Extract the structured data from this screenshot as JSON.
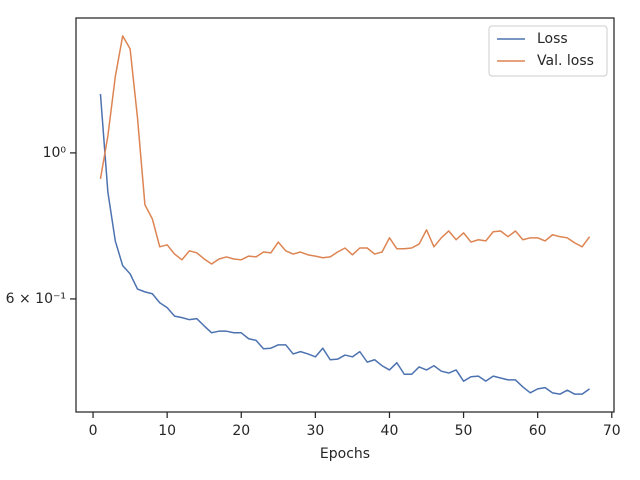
{
  "chart_data": {
    "type": "line",
    "xlabel": "Epochs",
    "yscale": "log",
    "legend": "upper right",
    "grid": false,
    "x": [
      1,
      2,
      3,
      4,
      5,
      6,
      7,
      8,
      9,
      10,
      11,
      12,
      13,
      14,
      15,
      16,
      17,
      18,
      19,
      20,
      21,
      22,
      23,
      24,
      25,
      26,
      27,
      28,
      29,
      30,
      31,
      32,
      33,
      34,
      35,
      36,
      37,
      38,
      39,
      40,
      41,
      42,
      43,
      44,
      45,
      46,
      47,
      48,
      49,
      50,
      51,
      52,
      53,
      54,
      55,
      56,
      57,
      58,
      59,
      60,
      61,
      62,
      63,
      64,
      65,
      66,
      67
    ],
    "series": [
      {
        "name": "Loss",
        "color": "#4c72b0",
        "values": [
          1.229,
          0.872,
          0.735,
          0.674,
          0.655,
          0.621,
          0.615,
          0.611,
          0.592,
          0.582,
          0.565,
          0.562,
          0.558,
          0.56,
          0.546,
          0.533,
          0.536,
          0.536,
          0.533,
          0.533,
          0.522,
          0.519,
          0.504,
          0.505,
          0.511,
          0.511,
          0.495,
          0.499,
          0.495,
          0.49,
          0.505,
          0.485,
          0.486,
          0.493,
          0.49,
          0.499,
          0.481,
          0.485,
          0.475,
          0.468,
          0.48,
          0.461,
          0.461,
          0.473,
          0.468,
          0.475,
          0.466,
          0.463,
          0.468,
          0.45,
          0.457,
          0.458,
          0.45,
          0.458,
          0.455,
          0.452,
          0.452,
          0.441,
          0.432,
          0.438,
          0.44,
          0.432,
          0.43,
          0.436,
          0.43,
          0.43,
          0.438
        ]
      },
      {
        "name": "Val. loss",
        "color": "#dd8452",
        "values": [
          0.913,
          1.061,
          1.305,
          1.506,
          1.439,
          1.13,
          0.834,
          0.794,
          0.72,
          0.725,
          0.702,
          0.688,
          0.71,
          0.705,
          0.69,
          0.678,
          0.69,
          0.695,
          0.69,
          0.688,
          0.697,
          0.695,
          0.707,
          0.705,
          0.732,
          0.71,
          0.702,
          0.707,
          0.7,
          0.697,
          0.693,
          0.695,
          0.707,
          0.717,
          0.7,
          0.717,
          0.717,
          0.702,
          0.707,
          0.743,
          0.715,
          0.715,
          0.717,
          0.727,
          0.764,
          0.72,
          0.743,
          0.761,
          0.738,
          0.756,
          0.732,
          0.738,
          0.735,
          0.759,
          0.761,
          0.746,
          0.761,
          0.738,
          0.743,
          0.743,
          0.735,
          0.751,
          0.746,
          0.743,
          0.73,
          0.72,
          0.746
        ]
      }
    ],
    "xlim": [
      -2.3,
      70.3
    ],
    "xticks": [
      0,
      10,
      20,
      30,
      40,
      50,
      60,
      70
    ],
    "ylim": [
      0.404,
      1.603
    ],
    "yticks": [
      {
        "value": 1,
        "label": "10⁰"
      },
      {
        "value": 0.6,
        "label": "6 × 10⁻¹"
      }
    ]
  }
}
